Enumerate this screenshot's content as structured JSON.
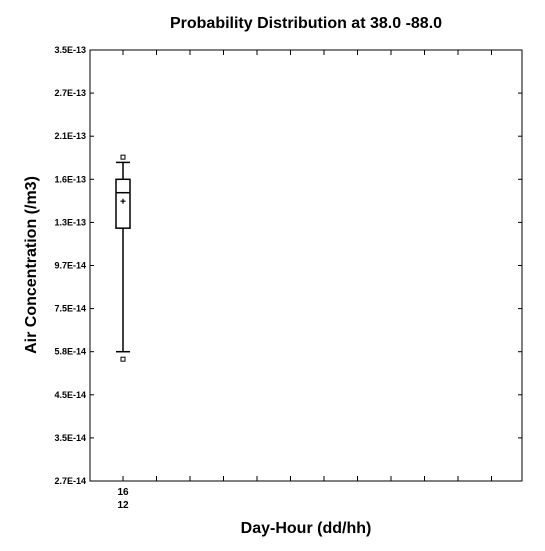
{
  "chart_data": {
    "type": "box",
    "title": "Probability Distribution at  38.0  -88.0",
    "xlabel": "Day-Hour (dd/hh)",
    "ylabel": "Air Concentration (/m3)",
    "y_scale": "log",
    "ylim": [
      2.7e-14,
      3.5e-13
    ],
    "y_ticks": [
      {
        "value": 3.5e-13,
        "label": "3.5E-13"
      },
      {
        "value": 2.7e-13,
        "label": "2.7E-13"
      },
      {
        "value": 2.1e-13,
        "label": "2.1E-13"
      },
      {
        "value": 1.6e-13,
        "label": "1.6E-13"
      },
      {
        "value": 1.3e-13,
        "label": "1.3E-13"
      },
      {
        "value": 9.7e-14,
        "label": "9.7E-14"
      },
      {
        "value": 7.5e-14,
        "label": "7.5E-14"
      },
      {
        "value": 5.8e-14,
        "label": "5.8E-14"
      },
      {
        "value": 4.5e-14,
        "label": "4.5E-14"
      },
      {
        "value": 3.5e-14,
        "label": "3.5E-14"
      },
      {
        "value": 2.7e-14,
        "label": "2.7E-14"
      }
    ],
    "x_ticks": [
      {
        "line1": "16",
        "line2": "12"
      }
    ],
    "boxes": [
      {
        "x_index": 0,
        "whisker_low": 5.8e-14,
        "q1": 1.25e-13,
        "median": 1.5e-13,
        "mean": 1.44e-13,
        "q3": 1.6e-13,
        "whisker_high": 1.78e-13,
        "outliers": [
          5.55e-14,
          1.84e-13
        ]
      }
    ]
  }
}
